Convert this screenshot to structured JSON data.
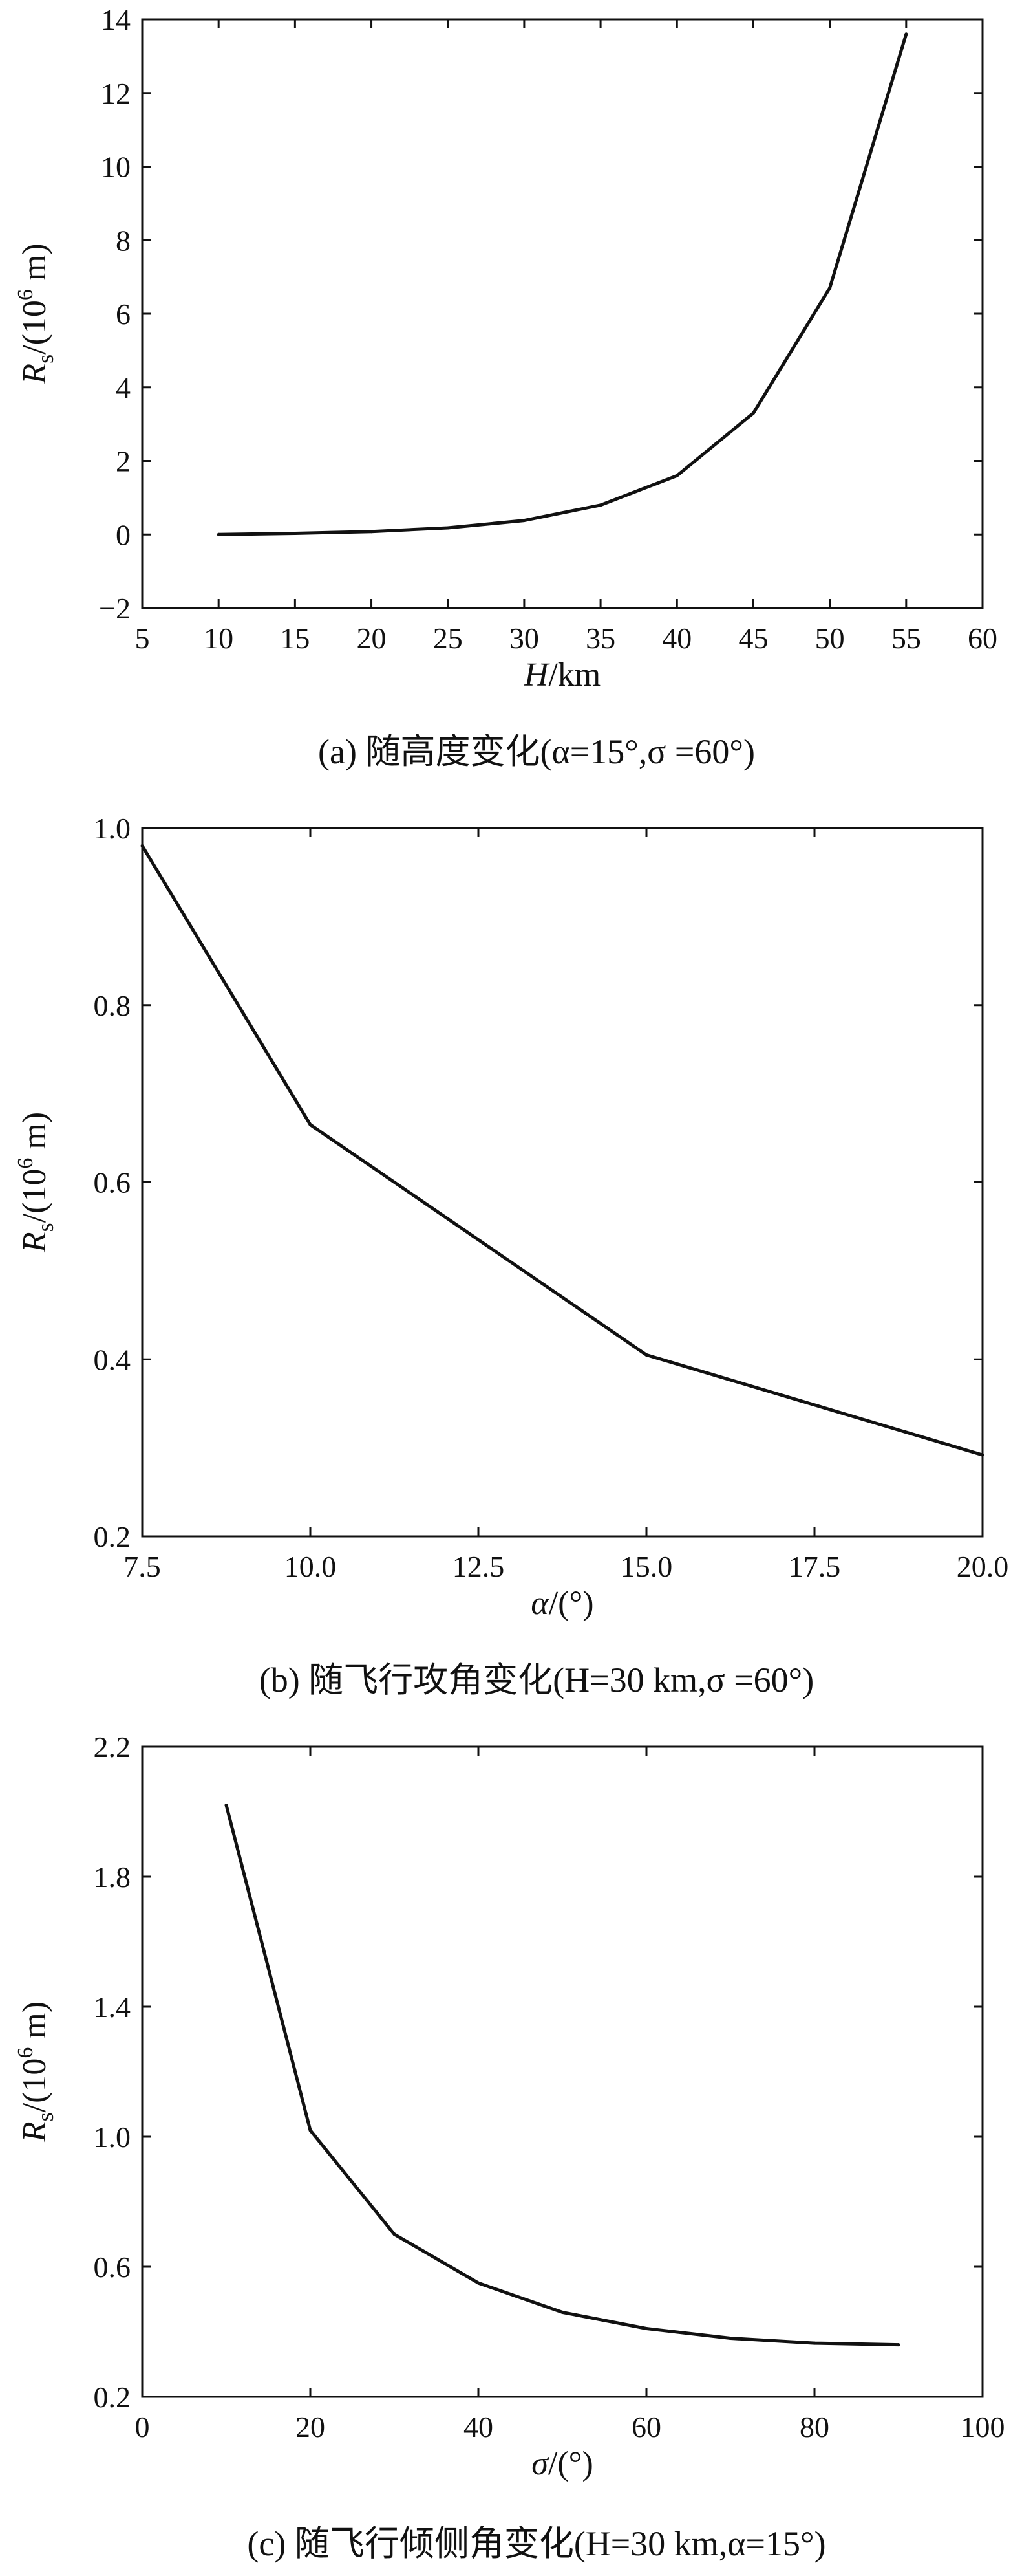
{
  "chart_data": [
    {
      "id": "a",
      "type": "line",
      "caption": "(a) 随高度变化(α=15°,σ =60°)",
      "xlabel_var": "H",
      "xlabel_unit": "/km",
      "ylabel_var": "R",
      "ylabel_sub": "s",
      "ylabel_unit": "/(10",
      "ylabel_exp": "6",
      "ylabel_tail": " m)",
      "xlim": [
        5,
        60
      ],
      "ylim": [
        -2,
        14
      ],
      "xticks": [
        5,
        10,
        15,
        20,
        25,
        30,
        35,
        40,
        45,
        50,
        55,
        60
      ],
      "yticks": [
        -2,
        0,
        2,
        4,
        6,
        8,
        10,
        12,
        14
      ],
      "xtick_labels": [
        "5",
        "10",
        "15",
        "20",
        "25",
        "30",
        "35",
        "40",
        "45",
        "50",
        "55",
        "60"
      ],
      "ytick_labels": [
        "−2",
        "0",
        "2",
        "4",
        "6",
        "8",
        "10",
        "12",
        "14"
      ],
      "x": [
        10,
        15,
        20,
        25,
        30,
        35,
        40,
        45,
        50,
        55
      ],
      "values": [
        0.0,
        0.03,
        0.08,
        0.18,
        0.38,
        0.8,
        1.6,
        3.3,
        6.7,
        13.6
      ]
    },
    {
      "id": "b",
      "type": "line",
      "caption": "(b) 随飞行攻角变化(H=30 km,σ =60°)",
      "xlabel_var": "α",
      "xlabel_unit": "/(°)",
      "ylabel_var": "R",
      "ylabel_sub": "s",
      "ylabel_unit": "/(10",
      "ylabel_exp": "6",
      "ylabel_tail": " m)",
      "xlim": [
        7.5,
        20.0
      ],
      "ylim": [
        0.2,
        1.0
      ],
      "xticks": [
        7.5,
        10.0,
        12.5,
        15.0,
        17.5,
        20.0
      ],
      "yticks": [
        0.2,
        0.4,
        0.6,
        0.8,
        1.0
      ],
      "xtick_labels": [
        "7.5",
        "10.0",
        "12.5",
        "15.0",
        "17.5",
        "20.0"
      ],
      "ytick_labels": [
        "0.2",
        "0.4",
        "0.6",
        "0.8",
        "1.0"
      ],
      "x": [
        7.5,
        10.0,
        15.0,
        20.0
      ],
      "values": [
        0.98,
        0.665,
        0.405,
        0.292
      ]
    },
    {
      "id": "c",
      "type": "line",
      "caption": "(c) 随飞行倾侧角变化(H=30 km,α=15°)",
      "xlabel_var": "σ",
      "xlabel_unit": "/(°)",
      "ylabel_var": "R",
      "ylabel_sub": "s",
      "ylabel_unit": "/(10",
      "ylabel_exp": "6",
      "ylabel_tail": " m)",
      "xlim": [
        0,
        100
      ],
      "ylim": [
        0.2,
        2.2
      ],
      "xticks": [
        0,
        20,
        40,
        60,
        80,
        100
      ],
      "yticks": [
        0.2,
        0.6,
        1.0,
        1.4,
        1.8,
        2.2
      ],
      "xtick_labels": [
        "0",
        "20",
        "40",
        "60",
        "80",
        "100"
      ],
      "ytick_labels": [
        "0.2",
        "0.6",
        "1.0",
        "1.4",
        "1.8",
        "2.2"
      ],
      "x": [
        10,
        20,
        30,
        40,
        50,
        60,
        70,
        80,
        90
      ],
      "values": [
        2.02,
        1.02,
        0.7,
        0.55,
        0.46,
        0.41,
        0.38,
        0.365,
        0.36
      ]
    }
  ]
}
